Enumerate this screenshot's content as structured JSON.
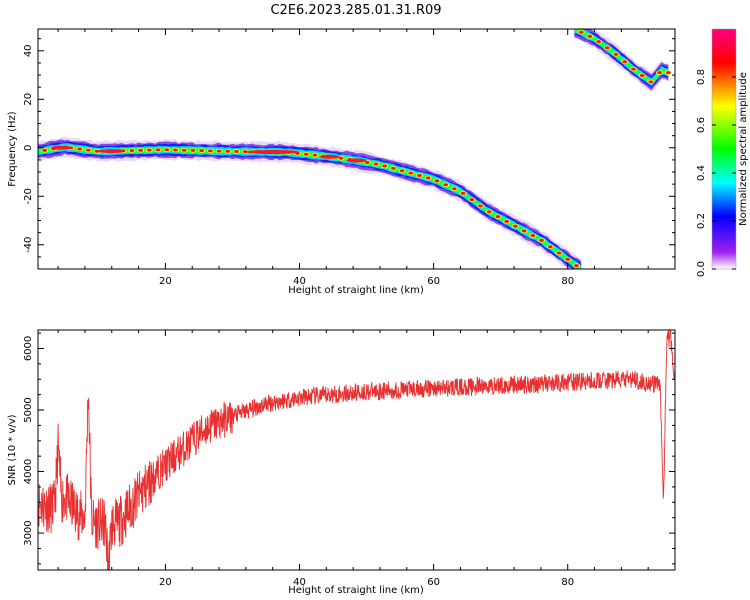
{
  "title": "C2E6.2023.285.01.31.R09",
  "chart_data": [
    {
      "type": "heatmap",
      "xlabel": "Height of straight line (km)",
      "ylabel": "Frequency (Hz)",
      "xlim": [
        1,
        96
      ],
      "ylim": [
        -50,
        49
      ],
      "xticks": [
        20,
        40,
        60,
        80
      ],
      "yticks": [
        -40,
        -20,
        0,
        20,
        40
      ],
      "colorbar": {
        "label": "Normalized spectral amplitude",
        "range": [
          0,
          1
        ],
        "ticks": [
          0.0,
          0.2,
          0.4,
          0.6,
          0.8
        ],
        "colormap": [
          "#ffffff",
          "#a020f0",
          "#0000ff",
          "#00ffff",
          "#00ff00",
          "#ffff00",
          "#ff0000",
          "#ff0080"
        ]
      },
      "trace": [
        {
          "x": 1,
          "y": -1.5
        },
        {
          "x": 5,
          "y": 0.3
        },
        {
          "x": 10,
          "y": -1.5
        },
        {
          "x": 20,
          "y": -0.8
        },
        {
          "x": 30,
          "y": -1.5
        },
        {
          "x": 38,
          "y": -1.8
        },
        {
          "x": 44,
          "y": -3.5
        },
        {
          "x": 48,
          "y": -5
        },
        {
          "x": 52,
          "y": -7
        },
        {
          "x": 56,
          "y": -10
        },
        {
          "x": 60,
          "y": -13
        },
        {
          "x": 64,
          "y": -18
        },
        {
          "x": 68,
          "y": -26
        },
        {
          "x": 72,
          "y": -32
        },
        {
          "x": 76,
          "y": -38
        },
        {
          "x": 80,
          "y": -46
        },
        {
          "x": 82,
          "y": -50
        }
      ],
      "trace2": [
        {
          "x": 81,
          "y": 49
        },
        {
          "x": 84,
          "y": 45
        },
        {
          "x": 87,
          "y": 39
        },
        {
          "x": 90,
          "y": 32
        },
        {
          "x": 92.5,
          "y": 27
        },
        {
          "x": 94,
          "y": 32
        },
        {
          "x": 95,
          "y": 31
        }
      ]
    },
    {
      "type": "line",
      "xlabel": "Height of straight line (km)",
      "ylabel": "SNR (10 * v/v)",
      "xlim": [
        1,
        96
      ],
      "ylim": [
        2400,
        6300
      ],
      "xticks": [
        20,
        40,
        60,
        80
      ],
      "yticks": [
        3000,
        4000,
        5000,
        6000
      ],
      "color": "#e83030",
      "series": [
        {
          "baseline": [
            {
              "x": 1,
              "y": 3500
            },
            {
              "x": 3,
              "y": 3400
            },
            {
              "x": 5,
              "y": 3600
            },
            {
              "x": 7,
              "y": 3300
            },
            {
              "x": 10,
              "y": 3150
            },
            {
              "x": 13,
              "y": 3150
            },
            {
              "x": 16,
              "y": 3600
            },
            {
              "x": 19,
              "y": 4000
            },
            {
              "x": 22,
              "y": 4300
            },
            {
              "x": 26,
              "y": 4700
            },
            {
              "x": 30,
              "y": 4900
            },
            {
              "x": 35,
              "y": 5100
            },
            {
              "x": 40,
              "y": 5200
            },
            {
              "x": 50,
              "y": 5300
            },
            {
              "x": 60,
              "y": 5350
            },
            {
              "x": 70,
              "y": 5400
            },
            {
              "x": 80,
              "y": 5450
            },
            {
              "x": 90,
              "y": 5500
            },
            {
              "x": 93,
              "y": 5400
            },
            {
              "x": 96,
              "y": 5500
            }
          ],
          "spikes": [
            {
              "x": 8.5,
              "y": 5350
            },
            {
              "x": 4,
              "y": 4400
            },
            {
              "x": 11.5,
              "y": 2450
            },
            {
              "x": 94.3,
              "y": 3350
            },
            {
              "x": 94.7,
              "y": 6250
            },
            {
              "x": 95.3,
              "y": 6350
            }
          ]
        }
      ]
    }
  ]
}
